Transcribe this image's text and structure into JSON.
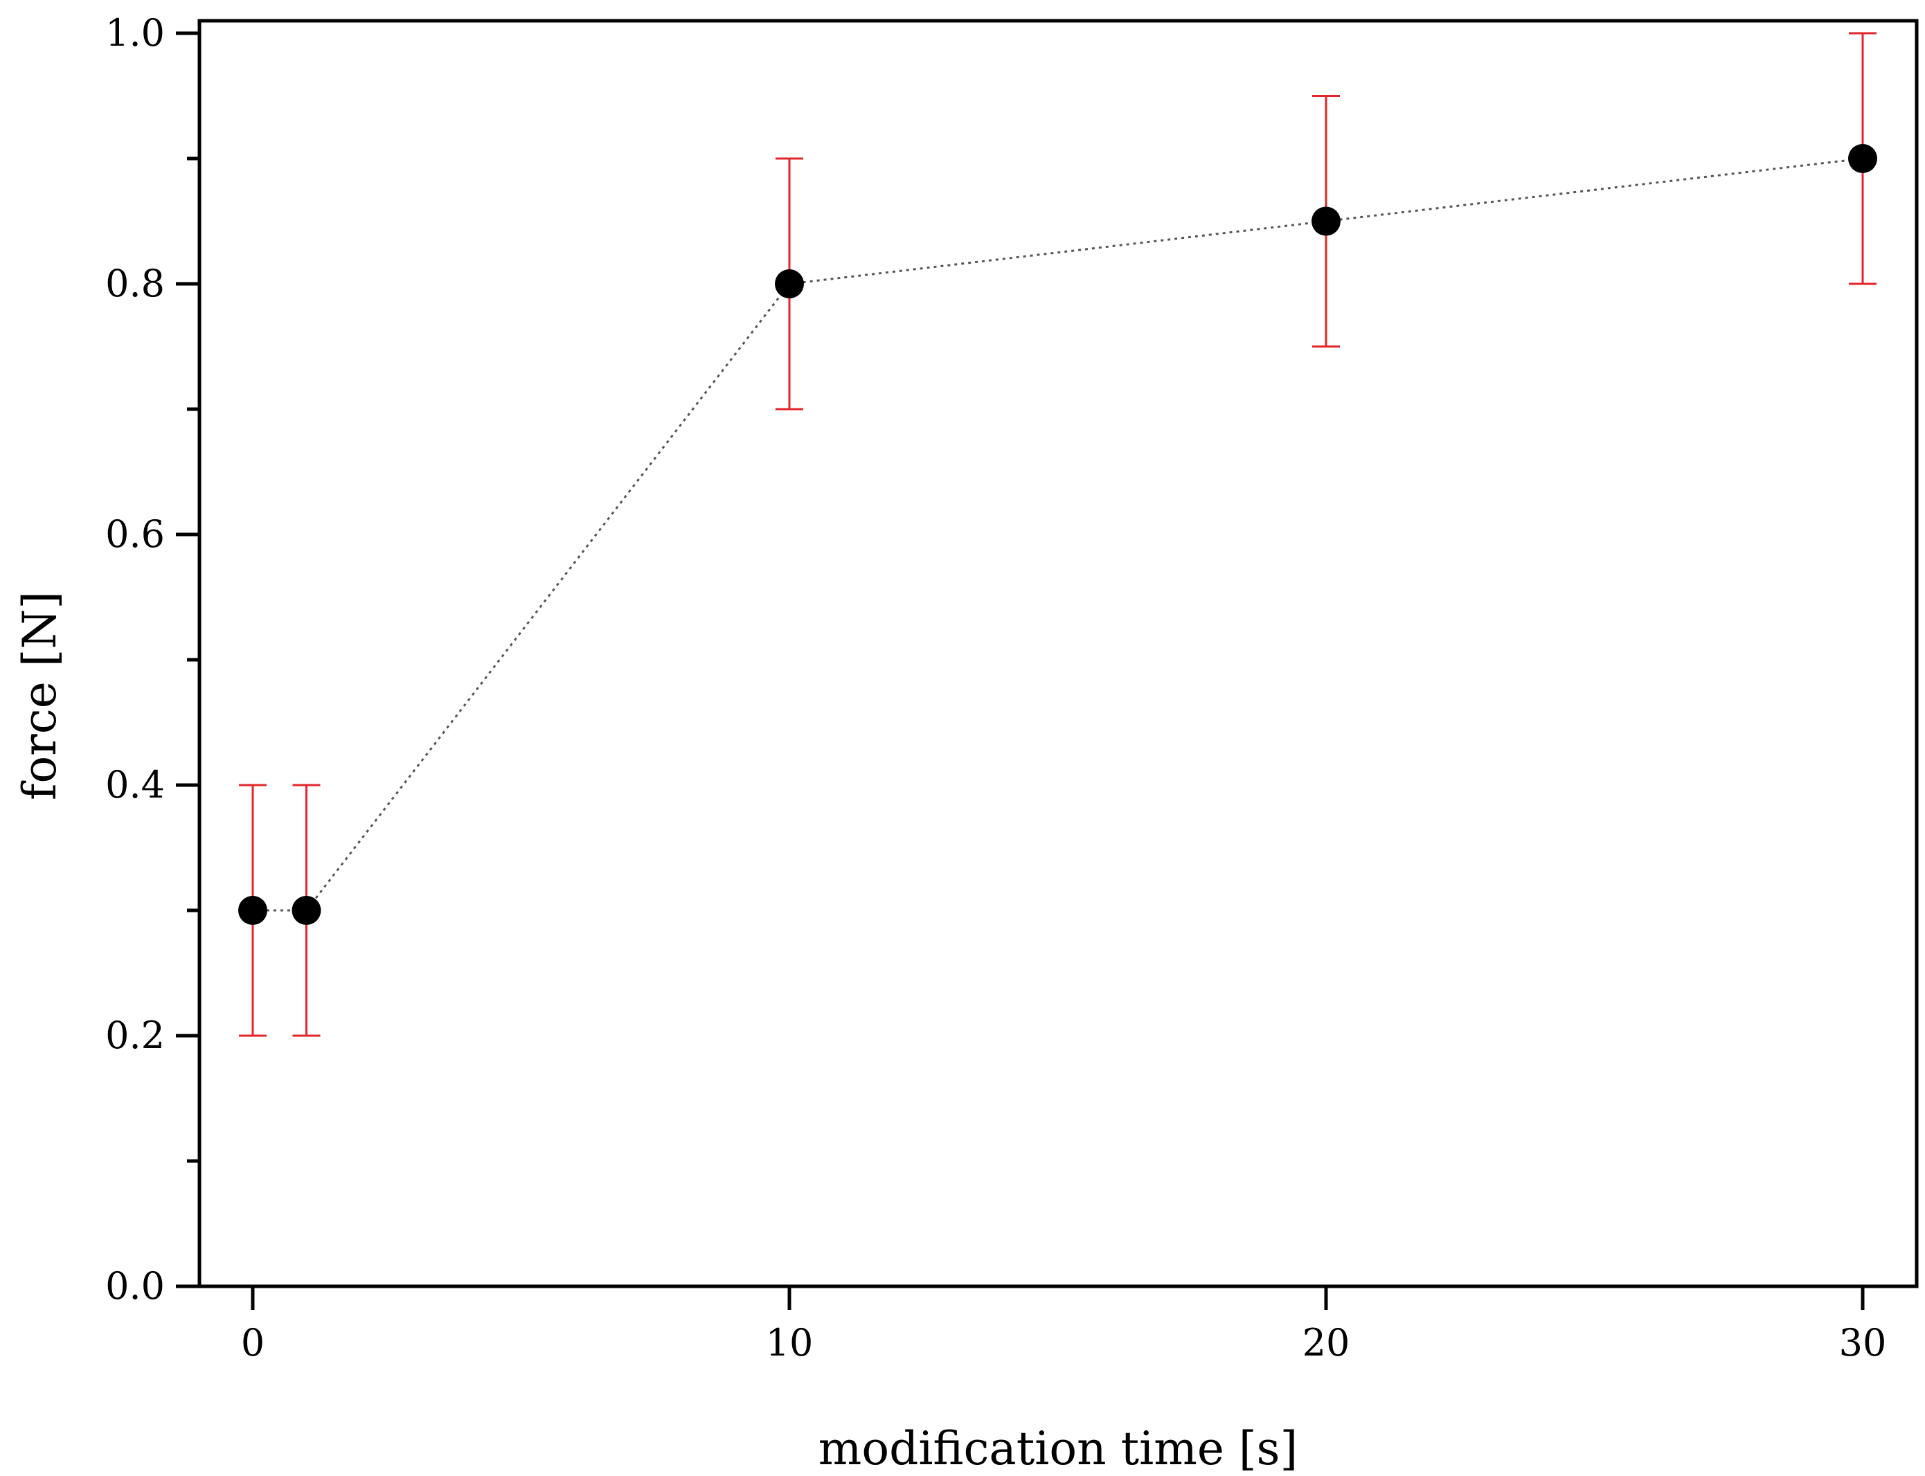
{
  "chart_data": {
    "type": "scatter",
    "title": "",
    "xlabel": "modification time [s]",
    "ylabel": "force [N]",
    "xlim": [
      -1,
      31
    ],
    "ylim": [
      0,
      1.0
    ],
    "x_ticks": [
      0,
      10,
      20,
      30
    ],
    "x_tick_labels": [
      "0",
      "10",
      "20",
      "30"
    ],
    "y_ticks": [
      0.0,
      0.2,
      0.4,
      0.6,
      0.8,
      1.0
    ],
    "y_tick_labels": [
      "0.0",
      "0.2",
      "0.4",
      "0.6",
      "0.8",
      "1.0"
    ],
    "y_minor_ticks": [
      0.1,
      0.3,
      0.5,
      0.7,
      0.9
    ],
    "grid": false,
    "legend": "none",
    "series": [
      {
        "x": [
          0,
          1,
          10,
          20,
          30
        ],
        "y": [
          0.3,
          0.3,
          0.8,
          0.85,
          0.9
        ],
        "error": [
          0.1,
          0.1,
          0.1,
          0.1,
          0.1
        ],
        "marker_color": "#000000",
        "error_color": "#e3262a",
        "line_style": "dotted",
        "line_color": "#555555"
      }
    ]
  }
}
